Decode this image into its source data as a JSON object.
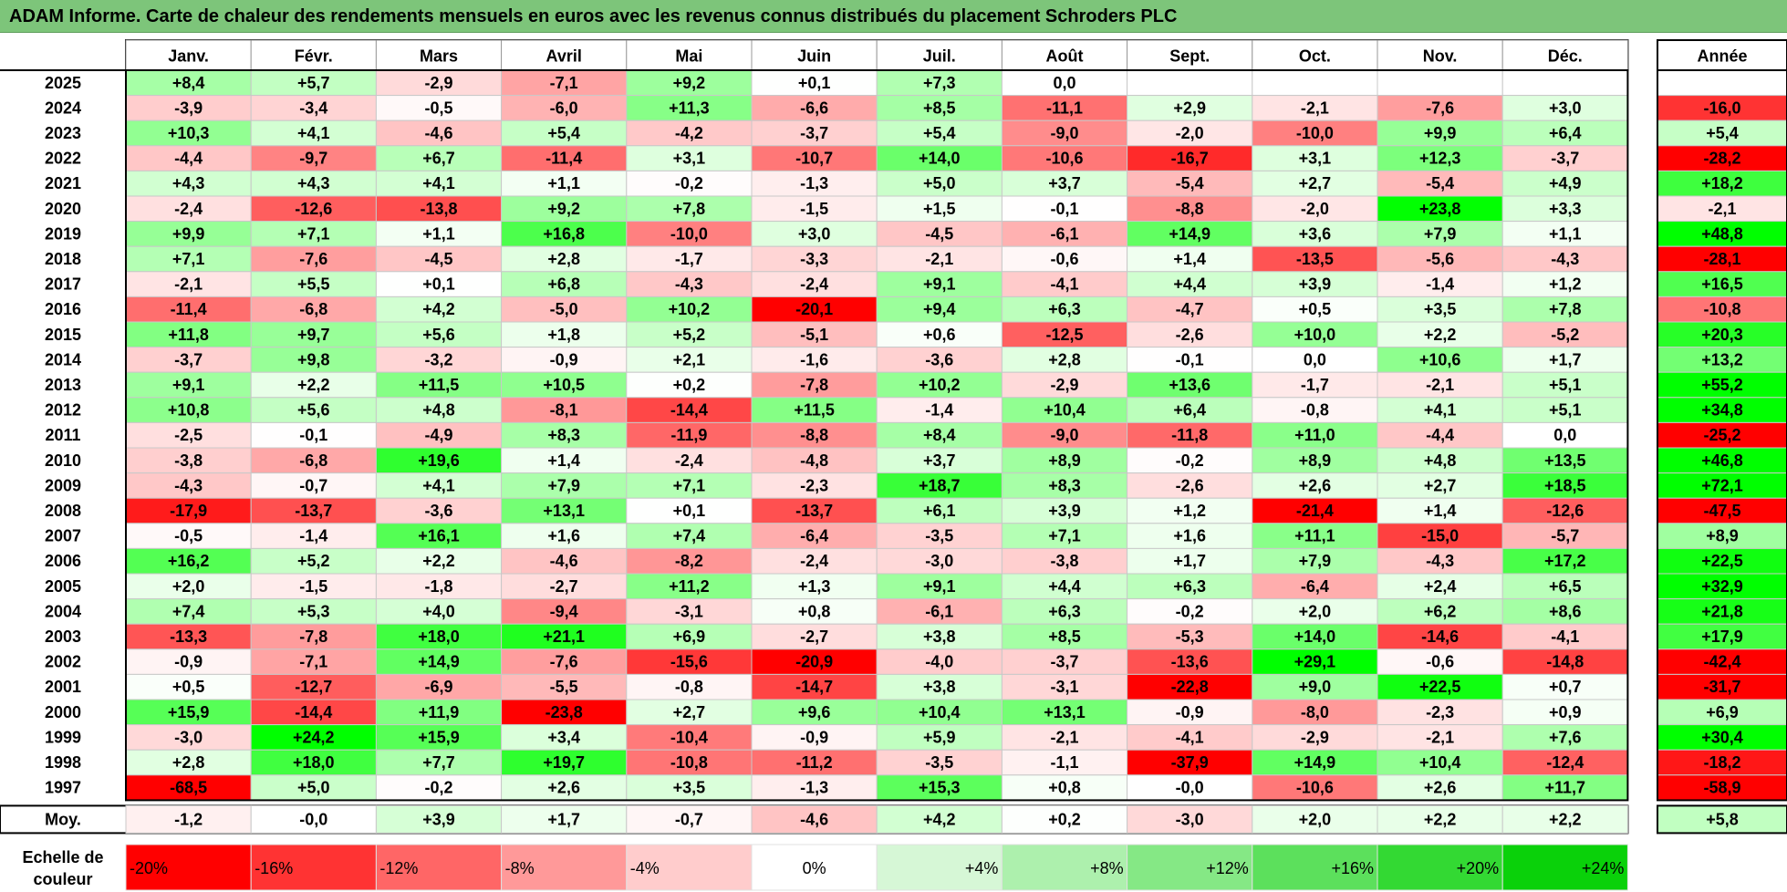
{
  "title": "ADAM Informe. Carte de chaleur des rendements mensuels en euros avec les revenus connus distribués du placement Schroders PLC",
  "chart_data": {
    "type": "heatmap",
    "title": "ADAM Informe. Carte de chaleur des rendements mensuels en euros avec les revenus connus distribués du placement Schroders PLC",
    "months": [
      "Janv.",
      "Févr.",
      "Mars",
      "Avril",
      "Mai",
      "Juin",
      "Juil.",
      "Août",
      "Sept.",
      "Oct.",
      "Nov.",
      "Déc."
    ],
    "year_header": "Année",
    "avg_label": "Moy.",
    "rows": [
      {
        "year": "2025",
        "values": [
          8.4,
          5.7,
          -2.9,
          -7.1,
          9.2,
          0.1,
          7.3,
          0.0,
          null,
          null,
          null,
          null
        ],
        "annual": null
      },
      {
        "year": "2024",
        "values": [
          -3.9,
          -3.4,
          -0.5,
          -6.0,
          11.3,
          -6.6,
          8.5,
          -11.1,
          2.9,
          -2.1,
          -7.6,
          3.0
        ],
        "annual": -16.0
      },
      {
        "year": "2023",
        "values": [
          10.3,
          4.1,
          -4.6,
          5.4,
          -4.2,
          -3.7,
          5.4,
          -9.0,
          -2.0,
          -10.0,
          9.9,
          6.4
        ],
        "annual": 5.4
      },
      {
        "year": "2022",
        "values": [
          -4.4,
          -9.7,
          6.7,
          -11.4,
          3.1,
          -10.7,
          14.0,
          -10.6,
          -16.7,
          3.1,
          12.3,
          -3.7
        ],
        "annual": -28.2
      },
      {
        "year": "2021",
        "values": [
          4.3,
          4.3,
          4.1,
          1.1,
          -0.2,
          -1.3,
          5.0,
          3.7,
          -5.4,
          2.7,
          -5.4,
          4.9
        ],
        "annual": 18.2
      },
      {
        "year": "2020",
        "values": [
          -2.4,
          -12.6,
          -13.8,
          9.2,
          7.8,
          -1.5,
          1.5,
          -0.1,
          -8.8,
          -2.0,
          23.8,
          3.3
        ],
        "annual": -2.1
      },
      {
        "year": "2019",
        "values": [
          9.9,
          7.1,
          1.1,
          16.8,
          -10.0,
          3.0,
          -4.5,
          -6.1,
          14.9,
          3.6,
          7.9,
          1.1
        ],
        "annual": 48.8
      },
      {
        "year": "2018",
        "values": [
          7.1,
          -7.6,
          -4.5,
          2.8,
          -1.7,
          -3.3,
          -2.1,
          -0.6,
          1.4,
          -13.5,
          -5.6,
          -4.3
        ],
        "annual": -28.1
      },
      {
        "year": "2017",
        "values": [
          -2.1,
          5.5,
          0.1,
          6.8,
          -4.3,
          -2.4,
          9.1,
          -4.1,
          4.4,
          3.9,
          -1.4,
          1.2
        ],
        "annual": 16.5
      },
      {
        "year": "2016",
        "values": [
          -11.4,
          -6.8,
          4.2,
          -5.0,
          10.2,
          -20.1,
          9.4,
          6.3,
          -4.7,
          0.5,
          3.5,
          7.8
        ],
        "annual": -10.8
      },
      {
        "year": "2015",
        "values": [
          11.8,
          9.7,
          5.6,
          1.8,
          5.2,
          -5.1,
          0.6,
          -12.5,
          -2.6,
          10.0,
          2.2,
          -5.2
        ],
        "annual": 20.3
      },
      {
        "year": "2014",
        "values": [
          -3.7,
          9.8,
          -3.2,
          -0.9,
          2.1,
          -1.6,
          -3.6,
          2.8,
          -0.1,
          0.0,
          10.6,
          1.7
        ],
        "annual": 13.2
      },
      {
        "year": "2013",
        "values": [
          9.1,
          2.2,
          11.5,
          10.5,
          0.2,
          -7.8,
          10.2,
          -2.9,
          13.6,
          -1.7,
          -2.1,
          5.1
        ],
        "annual": 55.2
      },
      {
        "year": "2012",
        "values": [
          10.8,
          5.6,
          4.8,
          -8.1,
          -14.4,
          11.5,
          -1.4,
          10.4,
          6.4,
          -0.8,
          4.1,
          5.1
        ],
        "annual": 34.8
      },
      {
        "year": "2011",
        "values": [
          -2.5,
          -0.1,
          -4.9,
          8.3,
          -11.9,
          -8.8,
          8.4,
          -9.0,
          -11.8,
          11.0,
          -4.4,
          0.0
        ],
        "annual": -25.2
      },
      {
        "year": "2010",
        "values": [
          -3.8,
          -6.8,
          19.6,
          1.4,
          -2.4,
          -4.8,
          3.7,
          8.9,
          -0.2,
          8.9,
          4.8,
          13.5
        ],
        "annual": 46.8
      },
      {
        "year": "2009",
        "values": [
          -4.3,
          -0.7,
          4.1,
          7.9,
          7.1,
          -2.3,
          18.7,
          8.3,
          -2.6,
          2.6,
          2.7,
          18.5
        ],
        "annual": 72.1
      },
      {
        "year": "2008",
        "values": [
          -17.9,
          -13.7,
          -3.6,
          13.1,
          0.1,
          -13.7,
          6.1,
          3.9,
          1.2,
          -21.4,
          1.4,
          -12.6
        ],
        "annual": -47.5
      },
      {
        "year": "2007",
        "values": [
          -0.5,
          -1.4,
          16.1,
          1.6,
          7.4,
          -6.4,
          -3.5,
          7.1,
          1.6,
          11.1,
          -15.0,
          -5.7
        ],
        "annual": 8.9
      },
      {
        "year": "2006",
        "values": [
          16.2,
          5.2,
          2.2,
          -4.6,
          -8.2,
          -2.4,
          -3.0,
          -3.8,
          1.7,
          7.9,
          -4.3,
          17.2
        ],
        "annual": 22.5
      },
      {
        "year": "2005",
        "values": [
          2.0,
          -1.5,
          -1.8,
          -2.7,
          11.2,
          1.3,
          9.1,
          4.4,
          6.3,
          -6.4,
          2.4,
          6.5
        ],
        "annual": 32.9
      },
      {
        "year": "2004",
        "values": [
          7.4,
          5.3,
          4.0,
          -9.4,
          -3.1,
          0.8,
          -6.1,
          6.3,
          -0.2,
          2.0,
          6.2,
          8.6
        ],
        "annual": 21.8
      },
      {
        "year": "2003",
        "values": [
          -13.3,
          -7.8,
          18.0,
          21.1,
          6.9,
          -2.7,
          3.8,
          8.5,
          -5.3,
          14.0,
          -14.6,
          -4.1
        ],
        "annual": 17.9
      },
      {
        "year": "2002",
        "values": [
          -0.9,
          -7.1,
          14.9,
          -7.6,
          -15.6,
          -20.9,
          -4.0,
          -3.7,
          -13.6,
          29.1,
          -0.6,
          -14.8
        ],
        "annual": -42.4
      },
      {
        "year": "2001",
        "values": [
          0.5,
          -12.7,
          -6.9,
          -5.5,
          -0.8,
          -14.7,
          3.8,
          -3.1,
          -22.8,
          9.0,
          22.5,
          0.7
        ],
        "annual": -31.7
      },
      {
        "year": "2000",
        "values": [
          15.9,
          -14.4,
          11.9,
          -23.8,
          2.7,
          9.6,
          10.4,
          13.1,
          -0.9,
          -8.0,
          -2.3,
          0.9
        ],
        "annual": 6.9
      },
      {
        "year": "1999",
        "values": [
          -3.0,
          24.2,
          15.9,
          3.4,
          -10.4,
          -0.9,
          5.9,
          -2.1,
          -4.1,
          -2.9,
          -2.1,
          7.6
        ],
        "annual": 30.4
      },
      {
        "year": "1998",
        "values": [
          2.8,
          18.0,
          7.7,
          19.7,
          -10.8,
          -11.2,
          -3.5,
          -1.1,
          -37.9,
          14.9,
          10.4,
          -12.4
        ],
        "annual": -18.2
      },
      {
        "year": "1997",
        "values": [
          -68.5,
          5.0,
          -0.2,
          2.6,
          3.5,
          -1.3,
          15.3,
          0.8,
          -0.0,
          -10.6,
          2.6,
          11.7
        ],
        "annual": -58.9
      }
    ],
    "averages": [
      -1.2,
      -0.0,
      3.9,
      1.7,
      -0.7,
      -4.6,
      4.2,
      0.2,
      -3.0,
      2.0,
      2.2,
      2.2
    ],
    "average_annual": 5.8,
    "scale": {
      "label": "Echelle de couleur",
      "steps": [
        {
          "label": "-20%",
          "value": -20,
          "color": "#ff0000"
        },
        {
          "label": "-16%",
          "value": -16,
          "color": "#ff3333"
        },
        {
          "label": "-12%",
          "value": -12,
          "color": "#ff6666"
        },
        {
          "label": "-8%",
          "value": -8,
          "color": "#ff9999"
        },
        {
          "label": "-4%",
          "value": -4,
          "color": "#ffcccc"
        },
        {
          "label": "0%",
          "value": 0,
          "color": "#ffffff"
        },
        {
          "label": "+4%",
          "value": 4,
          "color": "#d6f7d6"
        },
        {
          "label": "+8%",
          "value": 8,
          "color": "#adf0ad"
        },
        {
          "label": "+12%",
          "value": 12,
          "color": "#85e885"
        },
        {
          "label": "+16%",
          "value": 16,
          "color": "#5ce05c"
        },
        {
          "label": "+20%",
          "value": 20,
          "color": "#33d933"
        },
        {
          "label": "+24%",
          "value": 24,
          "color": "#0ad10a"
        }
      ]
    },
    "colors": {
      "negative_max": "#ff0000",
      "zero": "#ffffff",
      "positive_max": "#00ff00"
    }
  }
}
